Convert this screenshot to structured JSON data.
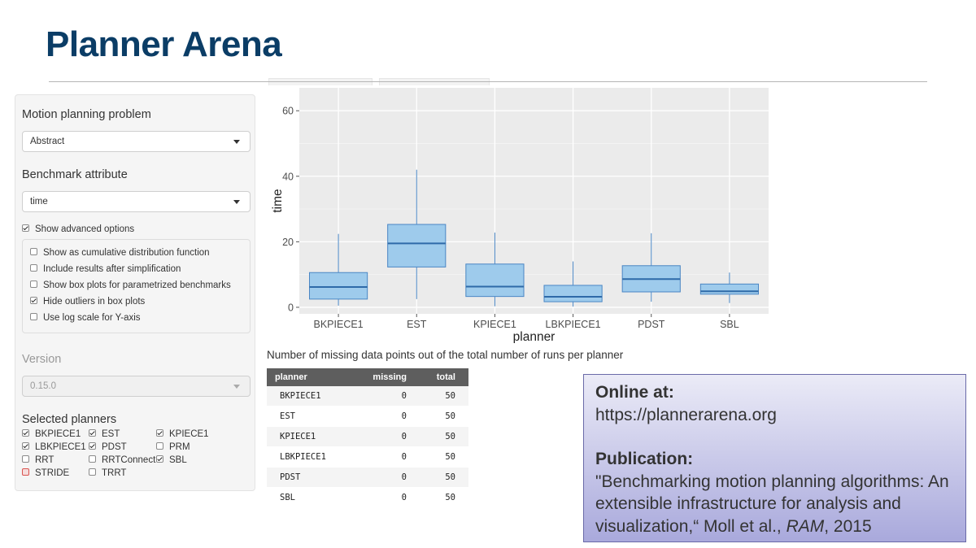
{
  "slide": {
    "title": "Planner Arena"
  },
  "sidebar": {
    "problem_label": "Motion planning problem",
    "problem_value": "Abstract",
    "attribute_label": "Benchmark attribute",
    "attribute_value": "time",
    "show_advanced": {
      "label": "Show advanced options",
      "checked": true
    },
    "advanced_options": [
      {
        "label": "Show as cumulative distribution function",
        "checked": false
      },
      {
        "label": "Include results after simplification",
        "checked": false
      },
      {
        "label": "Show box plots for parametrized benchmarks",
        "checked": false
      },
      {
        "label": "Hide outliers in box plots",
        "checked": true
      },
      {
        "label": "Use log scale for Y-axis",
        "checked": false
      }
    ],
    "version_label": "Version",
    "version_value": "0.15.0",
    "planners_label": "Selected planners",
    "planners": [
      {
        "label": "BKPIECE1",
        "checked": true
      },
      {
        "label": "EST",
        "checked": true
      },
      {
        "label": "KPIECE1",
        "checked": true
      },
      {
        "label": "LBKPIECE1",
        "checked": true
      },
      {
        "label": "PDST",
        "checked": true
      },
      {
        "label": "PRM",
        "checked": false
      },
      {
        "label": "RRT",
        "checked": false
      },
      {
        "label": "RRTConnect",
        "checked": false
      },
      {
        "label": "SBL",
        "checked": true
      },
      {
        "label": "STRIDE",
        "checked": false,
        "highlight": "red"
      },
      {
        "label": "TRRT",
        "checked": false
      }
    ]
  },
  "chart_data": {
    "type": "boxplot",
    "xlabel": "planner",
    "ylabel": "time",
    "ylim": [
      -2,
      67
    ],
    "yticks": [
      0,
      20,
      40,
      60
    ],
    "categories": [
      "BKPIECE1",
      "EST",
      "KPIECE1",
      "LBKPIECE1",
      "PDST",
      "SBL"
    ],
    "boxes": [
      {
        "planner": "BKPIECE1",
        "min": 0.5,
        "q1": 2.5,
        "median": 6.2,
        "q3": 10.6,
        "max": 22.4
      },
      {
        "planner": "EST",
        "min": 2.5,
        "q1": 12.3,
        "median": 19.5,
        "q3": 25.3,
        "max": 42.0
      },
      {
        "planner": "KPIECE1",
        "min": 0.3,
        "q1": 3.3,
        "median": 6.3,
        "q3": 13.2,
        "max": 22.8
      },
      {
        "planner": "LBKPIECE1",
        "min": 0.2,
        "q1": 1.7,
        "median": 3.2,
        "q3": 6.7,
        "max": 14.0
      },
      {
        "planner": "PDST",
        "min": 1.7,
        "q1": 4.7,
        "median": 8.6,
        "q3": 12.7,
        "max": 22.6
      },
      {
        "planner": "SBL",
        "min": 1.3,
        "q1": 4.0,
        "median": 4.9,
        "q3": 7.1,
        "max": 10.6
      }
    ],
    "grid": true,
    "legend": "none",
    "colors": {
      "box_fill": "#9ecbec",
      "box_stroke": "#4a86c4",
      "median": "#2e6aa8",
      "panel_bg": "#ebebeb",
      "grid": "#ffffff"
    }
  },
  "missing_table": {
    "caption": "Number of missing data points out of the total number of runs per planner",
    "headers": [
      "planner",
      "missing",
      "total"
    ],
    "rows": [
      [
        "BKPIECE1",
        "0",
        "50"
      ],
      [
        "EST",
        "0",
        "50"
      ],
      [
        "KPIECE1",
        "0",
        "50"
      ],
      [
        "LBKPIECE1",
        "0",
        "50"
      ],
      [
        "PDST",
        "0",
        "50"
      ],
      [
        "SBL",
        "0",
        "50"
      ]
    ]
  },
  "info_box": {
    "online_heading": "Online at:",
    "online_url": "https://plannerarena.org",
    "publication_heading": "Publication:",
    "publication_text": "\"Benchmarking motion planning algorithms: An extensible infrastructure for analysis and visualization,“ Moll et al., ",
    "journal": "RAM",
    "year_text": ", 2015"
  }
}
